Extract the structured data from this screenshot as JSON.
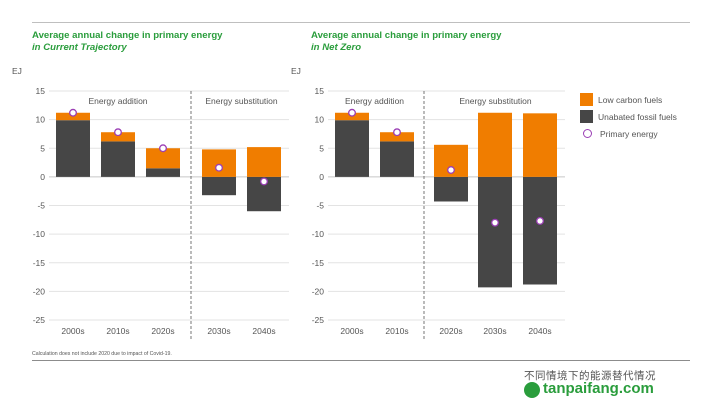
{
  "unit_label": "EJ",
  "footnote": "Calculation does not include 2020 due to impact of Covid-19.",
  "colors": {
    "low_carbon": "#f07d00",
    "fossil": "#464646",
    "marker": "#9b3fb5",
    "title": "#2a9d3c"
  },
  "legend": [
    {
      "label": "Low carbon fuels",
      "kind": "bar",
      "color": "#f07d00"
    },
    {
      "label": "Unabated fossil fuels",
      "kind": "bar",
      "color": "#464646"
    },
    {
      "label": "Primary energy",
      "kind": "circle",
      "color": "#9b3fb5"
    }
  ],
  "watermark": {
    "caption": "不同情境下的能源替代情况",
    "site": "tanpaifang.com"
  },
  "chart_data": [
    {
      "type": "bar",
      "title": "Average annual change in primary energy",
      "subtitle": "in Current Trajectory",
      "ylabel": "EJ",
      "ylim": [
        -25,
        15
      ],
      "yticks": [
        15,
        10,
        5,
        0,
        -5,
        -10,
        -15,
        -20,
        -25
      ],
      "categories": [
        "2000s",
        "2010s",
        "2020s",
        "2030s",
        "2040s"
      ],
      "groups": [
        {
          "label": "Energy addition",
          "categories": [
            "2000s",
            "2010s",
            "2020s"
          ]
        },
        {
          "label": "Energy substitution",
          "categories": [
            "2030s",
            "2040s"
          ]
        }
      ],
      "series": [
        {
          "name": "Low carbon fuels",
          "values": [
            1.3,
            1.6,
            3.5,
            4.8,
            5.2
          ]
        },
        {
          "name": "Unabated fossil fuels",
          "values": [
            9.9,
            6.2,
            1.5,
            -3.2,
            -6.0
          ]
        },
        {
          "name": "Primary energy",
          "values": [
            11.2,
            7.8,
            5.0,
            1.6,
            -0.8
          ]
        }
      ]
    },
    {
      "type": "bar",
      "title": "Average annual change in primary energy",
      "subtitle": "in Net Zero",
      "ylabel": "EJ",
      "ylim": [
        -25,
        15
      ],
      "yticks": [
        15,
        10,
        5,
        0,
        -5,
        -10,
        -15,
        -20,
        -25
      ],
      "categories": [
        "2000s",
        "2010s",
        "2020s",
        "2030s",
        "2040s"
      ],
      "groups": [
        {
          "label": "Energy addition",
          "categories": [
            "2000s",
            "2010s"
          ]
        },
        {
          "label": "Energy substitution",
          "categories": [
            "2020s",
            "2030s",
            "2040s"
          ]
        }
      ],
      "series": [
        {
          "name": "Low carbon fuels",
          "values": [
            1.3,
            1.6,
            5.6,
            11.2,
            11.1
          ]
        },
        {
          "name": "Unabated fossil fuels",
          "values": [
            9.9,
            6.2,
            -4.3,
            -19.3,
            -18.8
          ]
        },
        {
          "name": "Primary energy",
          "values": [
            11.2,
            7.8,
            1.2,
            -8.0,
            -7.7
          ]
        }
      ]
    }
  ]
}
